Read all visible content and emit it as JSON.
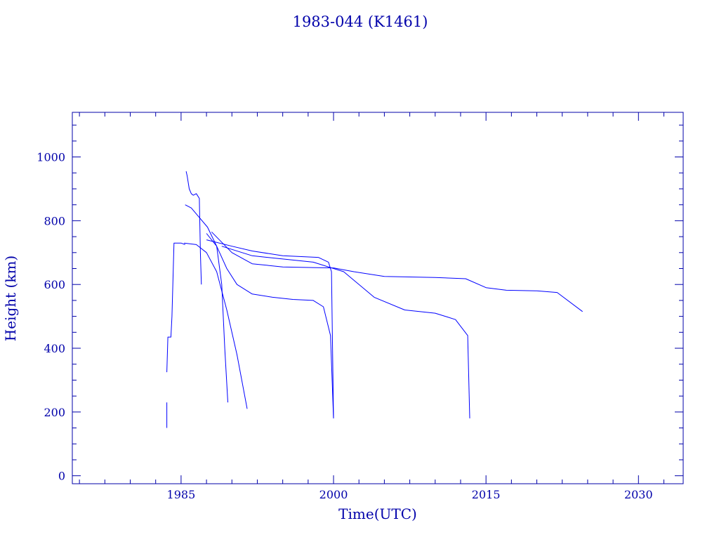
{
  "chart_data": {
    "type": "line",
    "title": "1983-044 (K1461)",
    "xlabel": "Time(UTC)",
    "ylabel": "Height (km)",
    "xlim": [
      1974.3,
      2034.4
    ],
    "ylim": [
      -25,
      1140
    ],
    "xticks": [
      1985,
      2000,
      2015,
      2030
    ],
    "yticks": [
      0,
      200,
      400,
      600,
      800,
      1000
    ],
    "grid": false,
    "color": "#0000ff",
    "axis_color": "#0000aa",
    "series": [
      {
        "x": [
          1983.6,
          1983.6
        ],
        "y": [
          150,
          230
        ]
      },
      {
        "x": [
          1983.6,
          1983.7,
          1984.0,
          1984.1,
          1984.3,
          1985.0,
          1985.4
        ],
        "y": [
          325,
          435,
          435,
          500,
          730,
          730,
          725
        ]
      },
      {
        "x": [
          1985.5,
          1985.6,
          1985.8,
          1986.0,
          1986.2,
          1986.5,
          1986.8,
          1986.9,
          1987.0
        ],
        "y": [
          955,
          940,
          900,
          885,
          880,
          885,
          870,
          700,
          600
        ]
      },
      {
        "x": [
          1985.4,
          1986.0,
          1986.8,
          1987.6,
          1988.5,
          1989.0,
          1989.3,
          1989.6
        ],
        "y": [
          850,
          840,
          810,
          780,
          720,
          600,
          400,
          230
        ]
      },
      {
        "x": [
          1985.3,
          1986.5,
          1987.5,
          1988.5,
          1989.5,
          1990.5,
          1991.5
        ],
        "y": [
          730,
          725,
          700,
          640,
          520,
          380,
          210
        ]
      },
      {
        "x": [
          1987.5,
          1990,
          1992,
          1995,
          1998.5,
          1999.5,
          1999.8,
          2000.0
        ],
        "y": [
          740,
          720,
          705,
          690,
          685,
          670,
          640,
          180
        ]
      },
      {
        "x": [
          1988,
          1990,
          1992,
          1995,
          1998,
          2000,
          2002,
          2005,
          2010,
          2013,
          2015,
          2017,
          2020,
          2022,
          2024.5
        ],
        "y": [
          765,
          700,
          665,
          655,
          653,
          652,
          640,
          625,
          622,
          618,
          590,
          582,
          580,
          575,
          515
        ]
      },
      {
        "x": [
          1987.5,
          1988.5,
          1989.5,
          1990.5,
          1992,
          1994,
          1996,
          1998,
          1999,
          1999.7,
          2000.0
        ],
        "y": [
          760,
          720,
          650,
          600,
          570,
          560,
          553,
          550,
          530,
          440,
          180
        ]
      },
      {
        "x": [
          1989,
          1992,
          1995,
          1998,
          2001,
          2004,
          2007,
          2010,
          2011,
          2012,
          2013.2,
          2013.4
        ],
        "y": [
          720,
          690,
          680,
          670,
          640,
          560,
          520,
          510,
          500,
          490,
          440,
          180
        ]
      }
    ]
  }
}
